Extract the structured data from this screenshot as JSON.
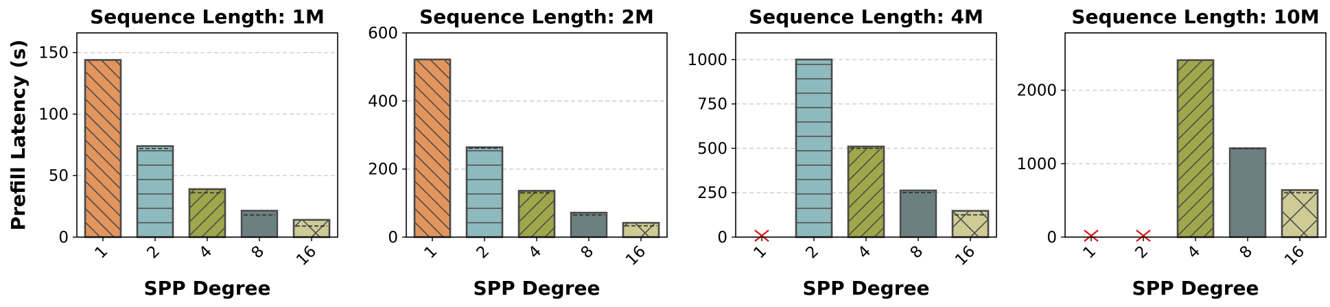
{
  "figure": {
    "ylabel": "Prefill Latency (s)"
  },
  "colors": {
    "1": "#E2955C",
    "2": "#8FBABD",
    "4": "#A0A64A",
    "8": "#6C8080",
    "16": "#CFCB96",
    "oom_marker": "#E01010"
  },
  "hatches": {
    "1": "backslash",
    "2": "horizontal",
    "4": "slash",
    "8": "none",
    "16": "cross"
  },
  "chart_data": [
    {
      "type": "bar",
      "title": "Sequence Length: 1M",
      "xlabel": "SPP Degree",
      "ylabel": "Prefill Latency (s)",
      "categories": [
        "1",
        "2",
        "4",
        "8",
        "16"
      ],
      "values": [
        144,
        74,
        39,
        21.5,
        14
      ],
      "dashed_reference": [
        null,
        72,
        36,
        18,
        9
      ],
      "oom": [
        false,
        false,
        false,
        false,
        false
      ],
      "ylim": [
        0,
        166
      ],
      "yticks": [
        0,
        50,
        100,
        150
      ],
      "grid": true
    },
    {
      "type": "bar",
      "title": "Sequence Length: 2M",
      "xlabel": "SPP Degree",
      "ylabel": "",
      "categories": [
        "1",
        "2",
        "4",
        "8",
        "16"
      ],
      "values": [
        522,
        264,
        136,
        72,
        42
      ],
      "dashed_reference": [
        null,
        261,
        130,
        65,
        33
      ],
      "oom": [
        false,
        false,
        false,
        false,
        false
      ],
      "ylim": [
        0,
        600
      ],
      "yticks": [
        0,
        200,
        400,
        600
      ],
      "grid": true
    },
    {
      "type": "bar",
      "title": "Sequence Length: 4M",
      "xlabel": "SPP Degree",
      "ylabel": "",
      "categories": [
        "1",
        "2",
        "4",
        "8",
        "16"
      ],
      "values": [
        0,
        1000,
        510,
        263,
        148
      ],
      "dashed_reference": [
        null,
        null,
        500,
        250,
        125
      ],
      "oom": [
        true,
        false,
        false,
        false,
        false
      ],
      "ylim": [
        0,
        1150
      ],
      "yticks": [
        0,
        250,
        500,
        750,
        1000
      ],
      "grid": true
    },
    {
      "type": "bar",
      "title": "Sequence Length: 10M",
      "xlabel": "SPP Degree",
      "ylabel": "",
      "categories": [
        "1",
        "2",
        "4",
        "8",
        "16"
      ],
      "values": [
        0,
        0,
        2410,
        1210,
        640
      ],
      "dashed_reference": [
        null,
        null,
        null,
        1205,
        603
      ],
      "oom": [
        true,
        true,
        false,
        false,
        false
      ],
      "ylim": [
        0,
        2780
      ],
      "yticks": [
        0,
        1000,
        2000
      ],
      "grid": true
    }
  ]
}
